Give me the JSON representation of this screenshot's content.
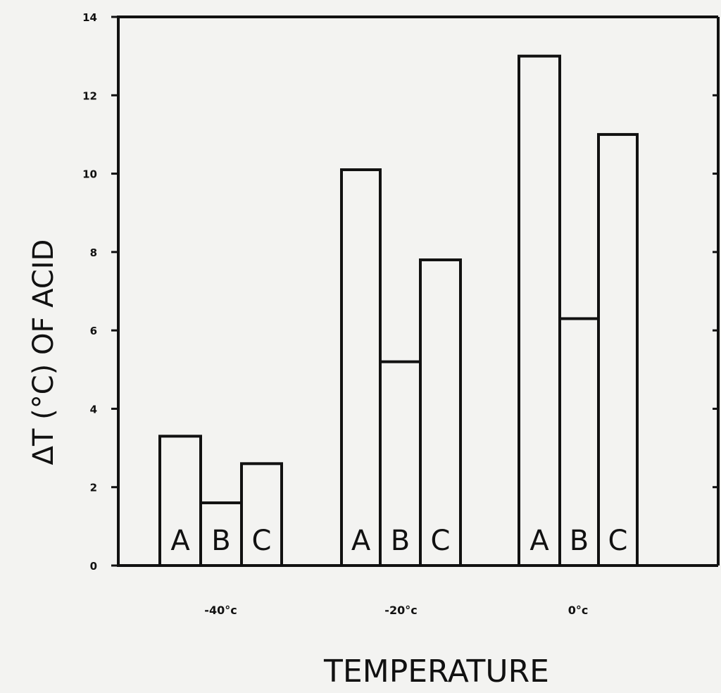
{
  "chart_data": {
    "type": "bar",
    "xlabel": "TEMPERATURE",
    "ylabel": "ΔT (°C) OF ACID",
    "ylim": [
      0,
      14
    ],
    "yticks": [
      0,
      2,
      4,
      6,
      8,
      10,
      12,
      14
    ],
    "grid": false,
    "categories": [
      "-40°c",
      "-20°c",
      "0°c"
    ],
    "series": [
      {
        "name": "A",
        "values": [
          3.3,
          10.1,
          13.0
        ]
      },
      {
        "name": "B",
        "values": [
          1.6,
          5.2,
          6.3
        ]
      },
      {
        "name": "C",
        "values": [
          2.6,
          7.8,
          11.0
        ]
      }
    ]
  }
}
